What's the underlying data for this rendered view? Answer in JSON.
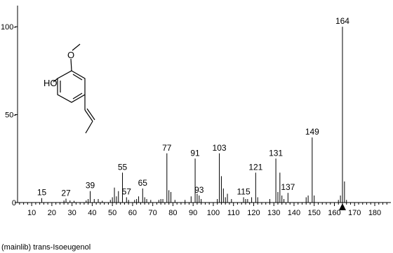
{
  "chart_data": {
    "type": "bar",
    "title": "",
    "xlabel": "",
    "ylabel": "",
    "xlim": [
      3,
      188
    ],
    "ylim": [
      0,
      112
    ],
    "caption": "(mainlib) trans-Isoeugenol",
    "molecule_labels": {
      "oh": "HO",
      "methoxy_o": "O"
    },
    "x_ticks": [
      10,
      20,
      30,
      40,
      50,
      60,
      70,
      80,
      90,
      100,
      110,
      120,
      130,
      140,
      150,
      160,
      170,
      180
    ],
    "y_ticks": [
      0,
      50,
      100
    ],
    "y_tick_labels": [
      "0",
      "50-",
      "100-"
    ],
    "precursor_marker": 164,
    "peaks": [
      {
        "mz": 15,
        "intensity": 2.5,
        "label": "15"
      },
      {
        "mz": 26,
        "intensity": 1.2
      },
      {
        "mz": 27,
        "intensity": 2.2,
        "label": "27"
      },
      {
        "mz": 29,
        "intensity": 1.2
      },
      {
        "mz": 31,
        "intensity": 1.0
      },
      {
        "mz": 37,
        "intensity": 1.2
      },
      {
        "mz": 38,
        "intensity": 2.0
      },
      {
        "mz": 39,
        "intensity": 6.5,
        "label": "39"
      },
      {
        "mz": 41,
        "intensity": 2.0
      },
      {
        "mz": 43,
        "intensity": 2.0
      },
      {
        "mz": 45,
        "intensity": 1.0
      },
      {
        "mz": 49,
        "intensity": 1.5
      },
      {
        "mz": 50,
        "intensity": 3.0
      },
      {
        "mz": 51,
        "intensity": 8.5
      },
      {
        "mz": 52,
        "intensity": 3.5
      },
      {
        "mz": 53,
        "intensity": 6.5
      },
      {
        "mz": 55,
        "intensity": 17.0,
        "label": "55"
      },
      {
        "mz": 57,
        "intensity": 3.0,
        "label": "57"
      },
      {
        "mz": 58,
        "intensity": 1.5
      },
      {
        "mz": 61,
        "intensity": 1.5
      },
      {
        "mz": 62,
        "intensity": 2.0
      },
      {
        "mz": 63,
        "intensity": 3.5
      },
      {
        "mz": 65,
        "intensity": 8.0,
        "label": "65"
      },
      {
        "mz": 66,
        "intensity": 3.0
      },
      {
        "mz": 67,
        "intensity": 2.0
      },
      {
        "mz": 69,
        "intensity": 1.5
      },
      {
        "mz": 73,
        "intensity": 1.5
      },
      {
        "mz": 74,
        "intensity": 2.0
      },
      {
        "mz": 75,
        "intensity": 2.0
      },
      {
        "mz": 77,
        "intensity": 28.0,
        "label": "77"
      },
      {
        "mz": 78,
        "intensity": 7.0
      },
      {
        "mz": 79,
        "intensity": 6.0
      },
      {
        "mz": 81,
        "intensity": 1.5
      },
      {
        "mz": 86,
        "intensity": 1.5
      },
      {
        "mz": 89,
        "intensity": 3.5
      },
      {
        "mz": 91,
        "intensity": 25.0,
        "label": "91"
      },
      {
        "mz": 92,
        "intensity": 5.0
      },
      {
        "mz": 93,
        "intensity": 4.0,
        "label": "93"
      },
      {
        "mz": 94,
        "intensity": 2.0
      },
      {
        "mz": 102,
        "intensity": 2.0
      },
      {
        "mz": 103,
        "intensity": 28.0,
        "label": "103"
      },
      {
        "mz": 104,
        "intensity": 15.0
      },
      {
        "mz": 105,
        "intensity": 8.0
      },
      {
        "mz": 106,
        "intensity": 3.0
      },
      {
        "mz": 107,
        "intensity": 5.0
      },
      {
        "mz": 109,
        "intensity": 2.0
      },
      {
        "mz": 115,
        "intensity": 3.0,
        "label": "115"
      },
      {
        "mz": 116,
        "intensity": 2.0
      },
      {
        "mz": 117,
        "intensity": 2.0
      },
      {
        "mz": 119,
        "intensity": 3.0
      },
      {
        "mz": 121,
        "intensity": 17.0,
        "label": "121"
      },
      {
        "mz": 122,
        "intensity": 3.0
      },
      {
        "mz": 128,
        "intensity": 2.0
      },
      {
        "mz": 131,
        "intensity": 25.0,
        "label": "131"
      },
      {
        "mz": 132,
        "intensity": 6.0
      },
      {
        "mz": 133,
        "intensity": 17.0
      },
      {
        "mz": 134,
        "intensity": 4.0
      },
      {
        "mz": 135,
        "intensity": 2.0
      },
      {
        "mz": 137,
        "intensity": 5.5,
        "label": "137"
      },
      {
        "mz": 146,
        "intensity": 3.0
      },
      {
        "mz": 147,
        "intensity": 4.0
      },
      {
        "mz": 149,
        "intensity": 37.0,
        "label": "149"
      },
      {
        "mz": 150,
        "intensity": 4.0
      },
      {
        "mz": 162,
        "intensity": 1.5
      },
      {
        "mz": 163,
        "intensity": 4.0
      },
      {
        "mz": 164,
        "intensity": 100.0,
        "label": "164"
      },
      {
        "mz": 165,
        "intensity": 12.0
      },
      {
        "mz": 166,
        "intensity": 1.5
      }
    ]
  }
}
